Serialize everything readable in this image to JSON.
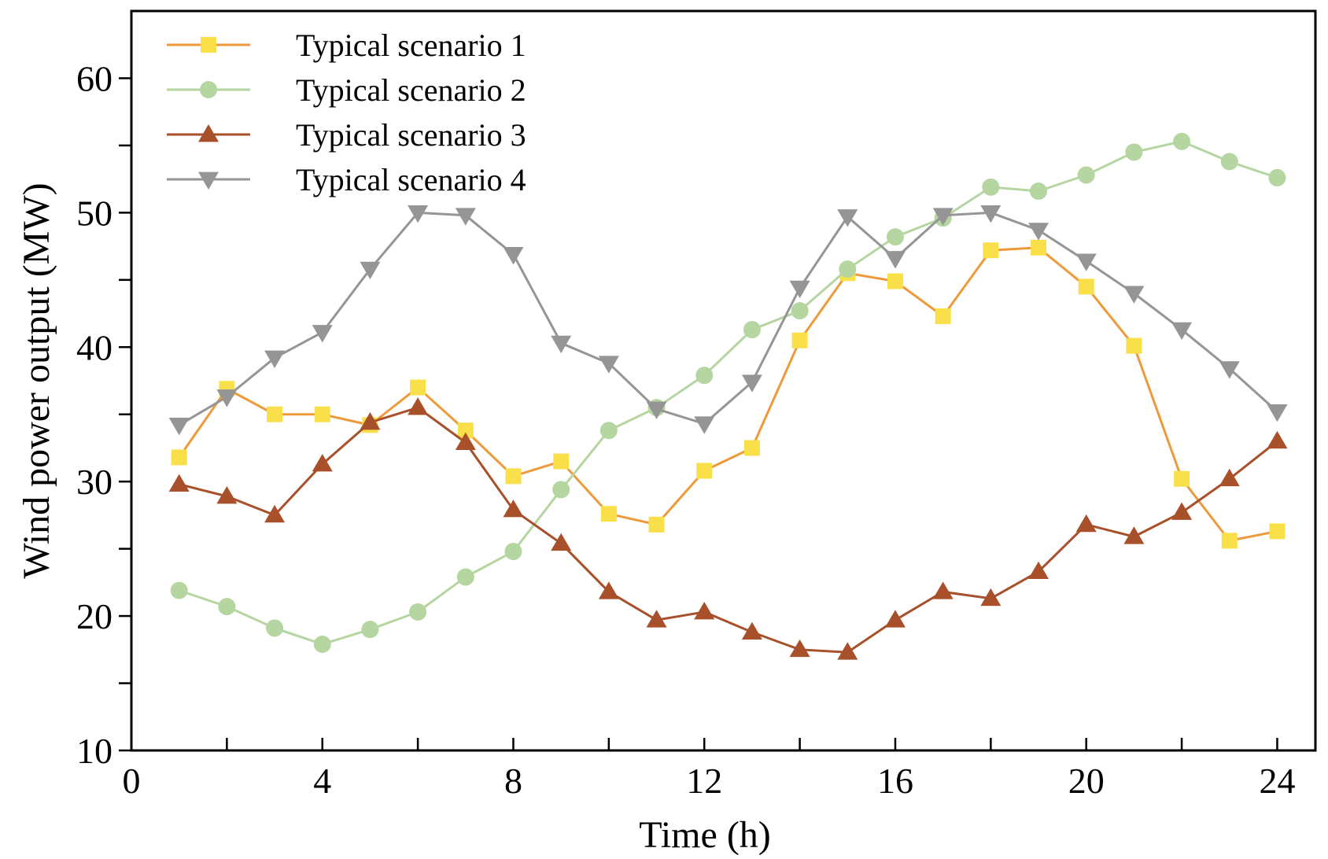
{
  "chart_data": {
    "type": "line",
    "title": "",
    "xlabel": "Time (h)",
    "ylabel": "Wind power output (MW)",
    "xlim": [
      0,
      24.8
    ],
    "ylim": [
      10,
      65
    ],
    "x_ticks": [
      0,
      4,
      8,
      12,
      16,
      20,
      24
    ],
    "x_minor_ticks": [
      2,
      6,
      10,
      14,
      18,
      22
    ],
    "y_ticks": [
      10,
      20,
      30,
      40,
      50,
      60
    ],
    "y_minor_ticks": [
      15,
      25,
      35,
      45,
      55
    ],
    "grid": false,
    "legend_position": "top-left",
    "x": [
      1,
      2,
      3,
      4,
      5,
      6,
      7,
      8,
      9,
      10,
      11,
      12,
      13,
      14,
      15,
      16,
      17,
      18,
      19,
      20,
      21,
      22,
      23,
      24
    ],
    "series": [
      {
        "name": "Typical scenario 1",
        "marker": "square",
        "line_color": "#EE9A3A",
        "marker_color": "#F9E04B",
        "values": [
          31.8,
          36.9,
          35.0,
          35.0,
          34.2,
          37.0,
          33.8,
          30.4,
          31.5,
          27.6,
          26.8,
          30.8,
          32.5,
          40.5,
          45.5,
          44.9,
          42.3,
          47.2,
          47.4,
          44.5,
          40.1,
          30.2,
          25.6,
          26.3
        ]
      },
      {
        "name": "Typical scenario 2",
        "marker": "circle",
        "line_color": "#B5D6A0",
        "marker_color": "#B5D6A0",
        "values": [
          21.9,
          20.7,
          19.1,
          17.9,
          19.0,
          20.3,
          22.9,
          24.8,
          29.4,
          33.8,
          35.5,
          37.9,
          41.3,
          42.7,
          45.8,
          48.2,
          49.6,
          51.9,
          51.6,
          52.8,
          54.5,
          55.3,
          53.8,
          52.6
        ]
      },
      {
        "name": "Typical scenario 3",
        "marker": "triangle-up",
        "line_color": "#A8502A",
        "marker_color": "#A8502A",
        "values": [
          29.8,
          28.9,
          27.5,
          31.3,
          34.4,
          35.5,
          32.9,
          27.9,
          25.4,
          21.8,
          19.7,
          20.3,
          18.8,
          17.5,
          17.3,
          19.7,
          21.8,
          21.3,
          23.3,
          26.8,
          25.9,
          27.7,
          30.2,
          33.0
        ]
      },
      {
        "name": "Typical scenario 4",
        "marker": "triangle-down",
        "line_color": "#959595",
        "marker_color": "#959595",
        "values": [
          34.2,
          36.3,
          39.2,
          41.1,
          45.8,
          50.0,
          49.8,
          46.9,
          40.3,
          38.8,
          35.4,
          34.3,
          37.4,
          44.4,
          49.7,
          46.6,
          49.8,
          50.0,
          48.7,
          46.4,
          44.0,
          41.3,
          38.4,
          35.2
        ]
      }
    ]
  }
}
